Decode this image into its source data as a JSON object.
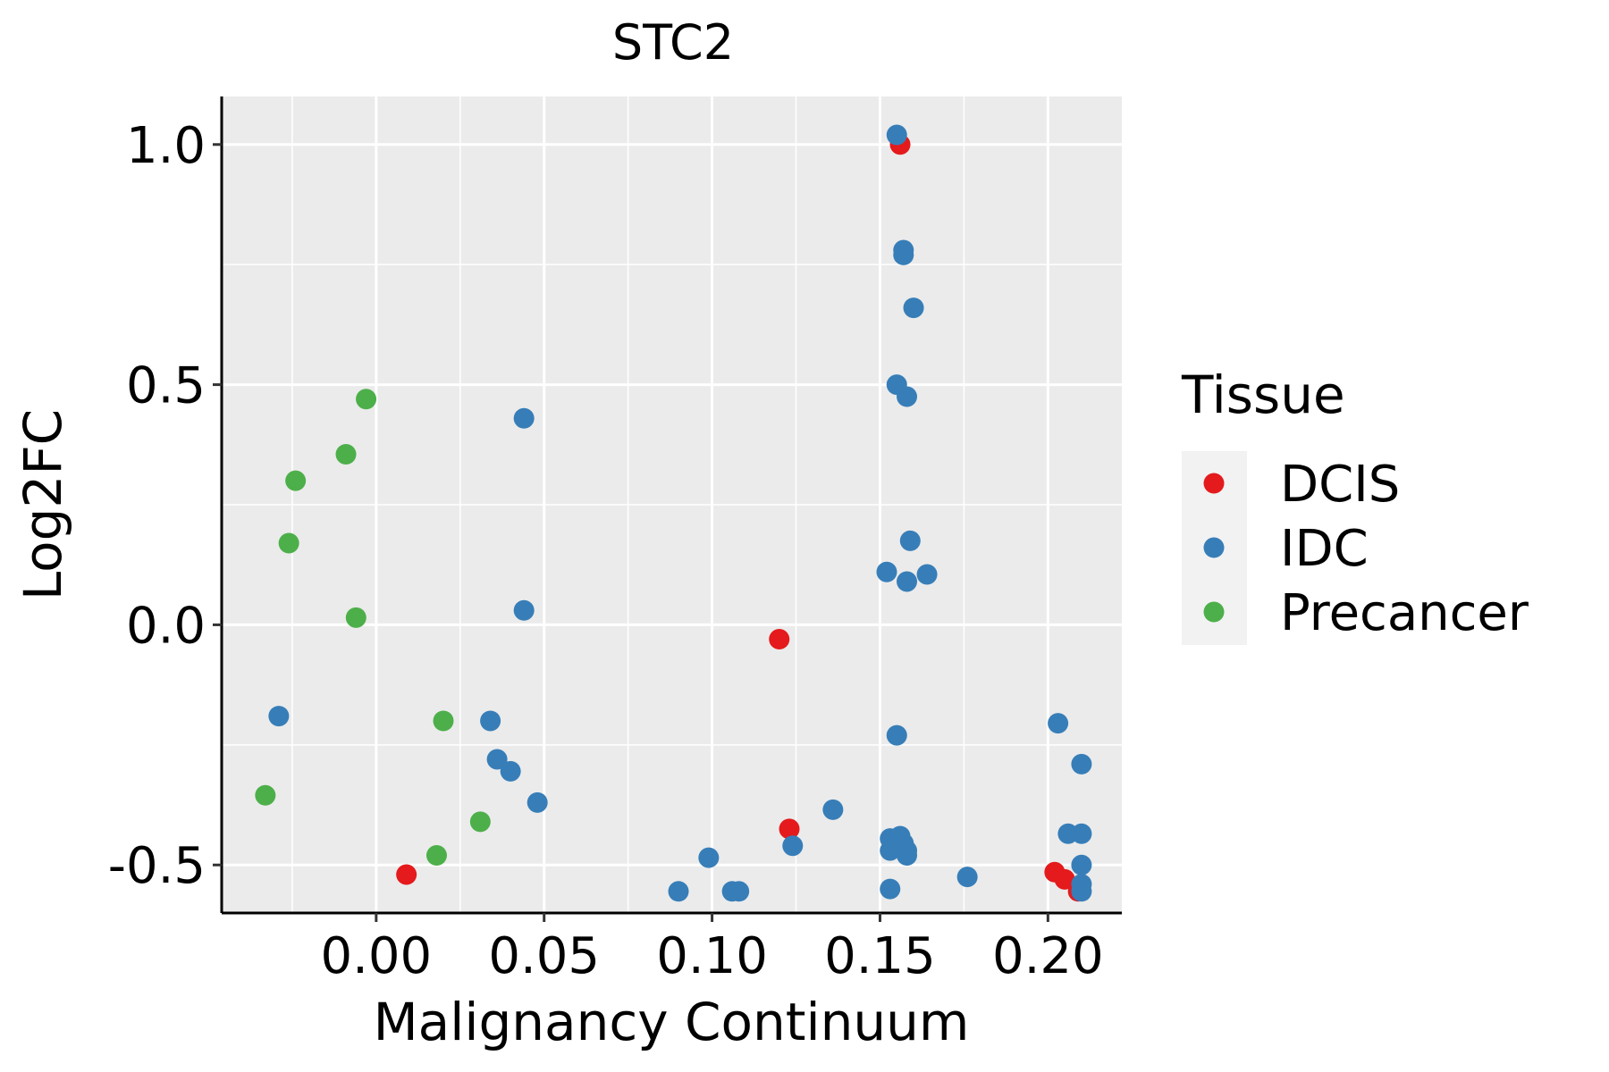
{
  "chart_data": {
    "type": "scatter",
    "title": "STC2",
    "xlabel": "Malignancy Continuum",
    "ylabel": "Log2FC",
    "xlim": [
      -0.046,
      0.222
    ],
    "ylim": [
      -0.6,
      1.1
    ],
    "x_ticks": [
      0.0,
      0.05,
      0.1,
      0.15,
      0.2
    ],
    "x_tick_labels": [
      "0.00",
      "0.05",
      "0.10",
      "0.15",
      "0.20"
    ],
    "y_ticks": [
      -0.5,
      0.0,
      0.5,
      1.0
    ],
    "y_tick_labels": [
      "-0.5",
      "0.0",
      "0.5",
      "1.0"
    ],
    "grid": true,
    "legend": {
      "title": "Tissue",
      "position": "right"
    },
    "series": [
      {
        "name": "DCIS",
        "color": "#E41A1C",
        "points": [
          [
            0.156,
            1.0
          ],
          [
            0.12,
            -0.03
          ],
          [
            0.123,
            -0.425
          ],
          [
            0.009,
            -0.52
          ],
          [
            0.202,
            -0.515
          ],
          [
            0.205,
            -0.53
          ],
          [
            0.209,
            -0.555
          ]
        ]
      },
      {
        "name": "IDC",
        "color": "#377EB8",
        "points": [
          [
            0.155,
            1.02
          ],
          [
            0.157,
            0.78
          ],
          [
            0.157,
            0.77
          ],
          [
            0.16,
            0.66
          ],
          [
            0.155,
            0.5
          ],
          [
            0.158,
            0.475
          ],
          [
            0.159,
            0.175
          ],
          [
            0.152,
            0.11
          ],
          [
            0.164,
            0.105
          ],
          [
            0.158,
            0.09
          ],
          [
            0.155,
            -0.23
          ],
          [
            0.044,
            0.43
          ],
          [
            0.044,
            0.03
          ],
          [
            -0.029,
            -0.19
          ],
          [
            0.034,
            -0.2
          ],
          [
            0.036,
            -0.28
          ],
          [
            0.04,
            -0.305
          ],
          [
            0.048,
            -0.37
          ],
          [
            0.136,
            -0.385
          ],
          [
            0.124,
            -0.46
          ],
          [
            0.099,
            -0.485
          ],
          [
            0.09,
            -0.555
          ],
          [
            0.106,
            -0.555
          ],
          [
            0.108,
            -0.555
          ],
          [
            0.153,
            -0.445
          ],
          [
            0.156,
            -0.44
          ],
          [
            0.157,
            -0.455
          ],
          [
            0.158,
            -0.47
          ],
          [
            0.153,
            -0.47
          ],
          [
            0.158,
            -0.48
          ],
          [
            0.153,
            -0.55
          ],
          [
            0.176,
            -0.525
          ],
          [
            0.203,
            -0.205
          ],
          [
            0.21,
            -0.29
          ],
          [
            0.206,
            -0.435
          ],
          [
            0.21,
            -0.435
          ],
          [
            0.21,
            -0.5
          ],
          [
            0.21,
            -0.54
          ],
          [
            0.21,
            -0.555
          ]
        ]
      },
      {
        "name": "Precancer",
        "color": "#4DAF4A",
        "points": [
          [
            -0.003,
            0.47
          ],
          [
            -0.009,
            0.355
          ],
          [
            -0.024,
            0.3
          ],
          [
            -0.026,
            0.17
          ],
          [
            -0.006,
            0.015
          ],
          [
            0.02,
            -0.2
          ],
          [
            -0.033,
            -0.355
          ],
          [
            0.031,
            -0.41
          ],
          [
            0.018,
            -0.48
          ]
        ]
      }
    ]
  }
}
